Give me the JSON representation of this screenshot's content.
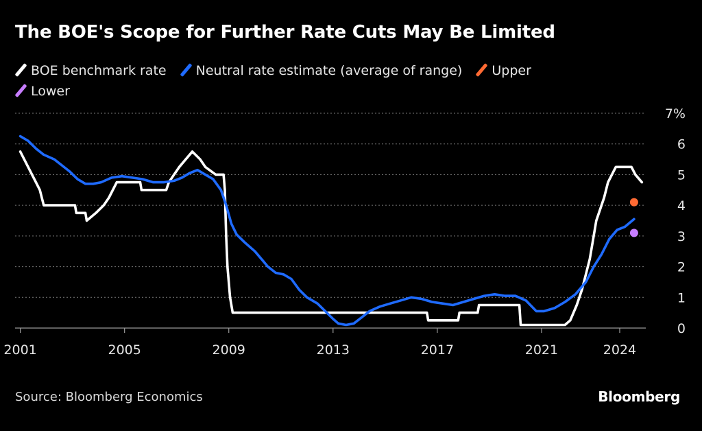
{
  "chart_data": {
    "type": "line",
    "title": "The BOE's Scope for Further Rate Cuts May Be Limited",
    "source": "Source: Bloomberg Economics",
    "brand": "Bloomberg",
    "xlim": [
      2000.8,
      2025.0
    ],
    "ylim": [
      0,
      7
    ],
    "y_tick_labels": [
      "0",
      "1",
      "2",
      "3",
      "4",
      "5",
      "6",
      "7%"
    ],
    "y_tick_values": [
      0,
      1,
      2,
      3,
      4,
      5,
      6,
      7
    ],
    "x_tick_labels": [
      "2001",
      "2005",
      "2009",
      "2013",
      "2017",
      "2021",
      "2024"
    ],
    "x_tick_values": [
      2001,
      2005,
      2009,
      2013,
      2017,
      2021,
      2024
    ],
    "grid": true,
    "y_axis_side": "right",
    "series": [
      {
        "name": "BOE benchmark rate",
        "color": "#ffffff",
        "kind": "line",
        "points": [
          [
            2001.0,
            5.75
          ],
          [
            2001.45,
            5.0
          ],
          [
            2001.6,
            4.75
          ],
          [
            2001.75,
            4.5
          ],
          [
            2001.9,
            4.0
          ],
          [
            2002.5,
            4.0
          ],
          [
            2003.1,
            4.0
          ],
          [
            2003.15,
            3.75
          ],
          [
            2003.5,
            3.75
          ],
          [
            2003.55,
            3.5
          ],
          [
            2003.9,
            3.75
          ],
          [
            2004.2,
            4.0
          ],
          [
            2004.4,
            4.25
          ],
          [
            2004.55,
            4.5
          ],
          [
            2004.7,
            4.75
          ],
          [
            2005.6,
            4.75
          ],
          [
            2005.65,
            4.5
          ],
          [
            2006.6,
            4.5
          ],
          [
            2006.7,
            4.75
          ],
          [
            2006.9,
            5.0
          ],
          [
            2007.1,
            5.25
          ],
          [
            2007.35,
            5.5
          ],
          [
            2007.6,
            5.75
          ],
          [
            2007.9,
            5.5
          ],
          [
            2008.1,
            5.25
          ],
          [
            2008.5,
            5.0
          ],
          [
            2008.8,
            5.0
          ],
          [
            2008.85,
            4.5
          ],
          [
            2008.9,
            3.0
          ],
          [
            2008.95,
            2.0
          ],
          [
            2009.05,
            1.0
          ],
          [
            2009.15,
            0.5
          ],
          [
            2015.0,
            0.5
          ],
          [
            2016.6,
            0.5
          ],
          [
            2016.65,
            0.25
          ],
          [
            2017.8,
            0.25
          ],
          [
            2017.85,
            0.5
          ],
          [
            2018.55,
            0.5
          ],
          [
            2018.6,
            0.75
          ],
          [
            2020.15,
            0.75
          ],
          [
            2020.2,
            0.1
          ],
          [
            2021.9,
            0.1
          ],
          [
            2022.1,
            0.25
          ],
          [
            2022.35,
            0.75
          ],
          [
            2022.55,
            1.25
          ],
          [
            2022.7,
            1.75
          ],
          [
            2022.85,
            2.25
          ],
          [
            2023.0,
            3.0
          ],
          [
            2023.1,
            3.5
          ],
          [
            2023.4,
            4.25
          ],
          [
            2023.55,
            4.75
          ],
          [
            2023.7,
            5.0
          ],
          [
            2023.85,
            5.25
          ],
          [
            2024.45,
            5.25
          ],
          [
            2024.6,
            5.0
          ],
          [
            2024.85,
            4.75
          ]
        ]
      },
      {
        "name": "Neutral rate estimate (average of range)",
        "color": "#1f6bff",
        "kind": "line",
        "points": [
          [
            2001.0,
            6.25
          ],
          [
            2001.3,
            6.1
          ],
          [
            2001.6,
            5.85
          ],
          [
            2001.9,
            5.65
          ],
          [
            2002.3,
            5.5
          ],
          [
            2002.6,
            5.3
          ],
          [
            2002.9,
            5.1
          ],
          [
            2003.2,
            4.85
          ],
          [
            2003.5,
            4.7
          ],
          [
            2003.8,
            4.7
          ],
          [
            2004.1,
            4.75
          ],
          [
            2004.5,
            4.9
          ],
          [
            2004.9,
            4.95
          ],
          [
            2005.3,
            4.9
          ],
          [
            2005.7,
            4.85
          ],
          [
            2006.1,
            4.75
          ],
          [
            2006.5,
            4.75
          ],
          [
            2006.9,
            4.8
          ],
          [
            2007.2,
            4.9
          ],
          [
            2007.5,
            5.05
          ],
          [
            2007.8,
            5.15
          ],
          [
            2008.1,
            5.0
          ],
          [
            2008.4,
            4.85
          ],
          [
            2008.7,
            4.5
          ],
          [
            2008.9,
            4.0
          ],
          [
            2009.1,
            3.4
          ],
          [
            2009.3,
            3.05
          ],
          [
            2009.6,
            2.8
          ],
          [
            2010.0,
            2.5
          ],
          [
            2010.3,
            2.2
          ],
          [
            2010.5,
            2.0
          ],
          [
            2010.8,
            1.8
          ],
          [
            2011.1,
            1.75
          ],
          [
            2011.4,
            1.6
          ],
          [
            2011.7,
            1.25
          ],
          [
            2012.0,
            1.0
          ],
          [
            2012.4,
            0.8
          ],
          [
            2012.7,
            0.55
          ],
          [
            2013.0,
            0.3
          ],
          [
            2013.2,
            0.15
          ],
          [
            2013.5,
            0.1
          ],
          [
            2013.8,
            0.15
          ],
          [
            2014.1,
            0.35
          ],
          [
            2014.4,
            0.55
          ],
          [
            2014.8,
            0.7
          ],
          [
            2015.2,
            0.8
          ],
          [
            2015.6,
            0.9
          ],
          [
            2016.0,
            1.0
          ],
          [
            2016.4,
            0.95
          ],
          [
            2016.8,
            0.85
          ],
          [
            2017.2,
            0.8
          ],
          [
            2017.6,
            0.75
          ],
          [
            2018.0,
            0.85
          ],
          [
            2018.4,
            0.95
          ],
          [
            2018.8,
            1.05
          ],
          [
            2019.2,
            1.1
          ],
          [
            2019.6,
            1.05
          ],
          [
            2020.0,
            1.05
          ],
          [
            2020.4,
            0.9
          ],
          [
            2020.8,
            0.55
          ],
          [
            2021.1,
            0.55
          ],
          [
            2021.5,
            0.65
          ],
          [
            2021.9,
            0.85
          ],
          [
            2022.3,
            1.1
          ],
          [
            2022.7,
            1.5
          ],
          [
            2023.0,
            2.0
          ],
          [
            2023.3,
            2.4
          ],
          [
            2023.6,
            2.9
          ],
          [
            2023.9,
            3.2
          ],
          [
            2024.2,
            3.3
          ],
          [
            2024.55,
            3.55
          ]
        ]
      },
      {
        "name": "Upper",
        "color": "#ff6a33",
        "kind": "point",
        "points": [
          [
            2024.55,
            4.1
          ]
        ]
      },
      {
        "name": "Lower",
        "color": "#c77dff",
        "kind": "point",
        "points": [
          [
            2024.55,
            3.1
          ]
        ]
      }
    ]
  }
}
